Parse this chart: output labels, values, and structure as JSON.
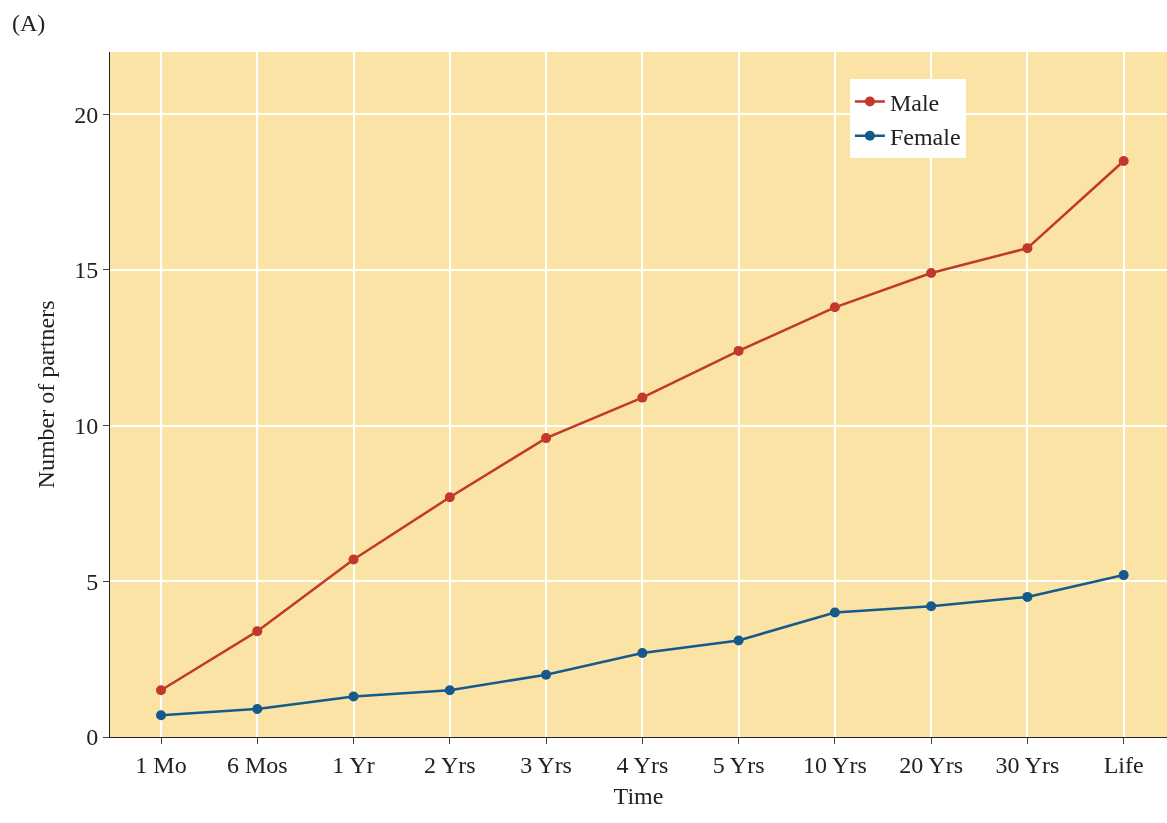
{
  "chart_data": {
    "type": "line",
    "annotations": [
      "(A)"
    ],
    "xlabel": "Time",
    "ylabel": "Number of partners",
    "categories": [
      "1 Mo",
      "6 Mos",
      "1 Yr",
      "2 Yrs",
      "3 Yrs",
      "4 Yrs",
      "5 Yrs",
      "10 Yrs",
      "20 Yrs",
      "30 Yrs",
      "Life"
    ],
    "series": [
      {
        "name": "Male",
        "color": "#c0392b",
        "values": [
          1.5,
          3.4,
          5.7,
          7.7,
          9.6,
          10.9,
          12.4,
          13.8,
          14.9,
          15.7,
          18.5
        ]
      },
      {
        "name": "Female",
        "color": "#155a8a",
        "values": [
          0.7,
          0.9,
          1.3,
          1.5,
          2.0,
          2.7,
          3.1,
          4.0,
          4.2,
          4.5,
          5.2
        ]
      }
    ],
    "ylim": [
      0,
      22
    ],
    "yticks": [
      0,
      5,
      10,
      15,
      20
    ],
    "grid": true,
    "legend": "top right",
    "marker": "circle",
    "line_style": "solid"
  }
}
